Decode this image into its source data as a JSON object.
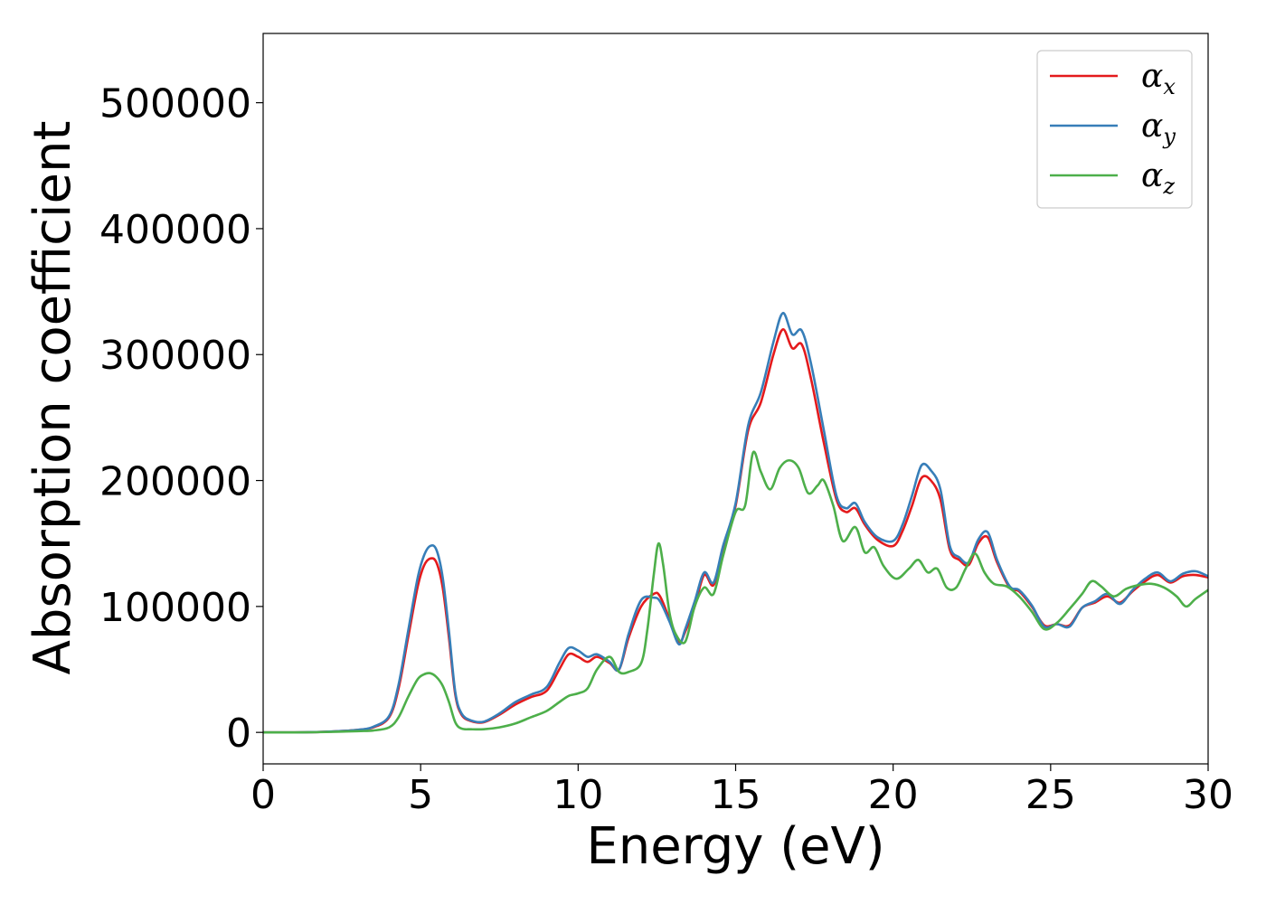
{
  "chart_data": {
    "type": "line",
    "xlabel": "Energy (eV)",
    "ylabel": "Absorption coefficient",
    "xlim": [
      0,
      30
    ],
    "ylim": [
      -25000,
      555000
    ],
    "xticks": [
      0,
      5,
      10,
      15,
      20,
      25,
      30
    ],
    "yticks": [
      0,
      100000,
      200000,
      300000,
      400000,
      500000
    ],
    "grid": false,
    "legend_position": "top-right",
    "series": [
      {
        "name": "α_x",
        "name_base": "α",
        "name_sub": "x",
        "color": "#e41a1c",
        "x": [
          0,
          1,
          2,
          3,
          3.5,
          4,
          4.3,
          4.6,
          4.9,
          5.1,
          5.3,
          5.5,
          5.7,
          5.9,
          6.1,
          6.3,
          6.6,
          7.0,
          7.5,
          8.0,
          8.5,
          9.0,
          9.4,
          9.7,
          10.0,
          10.3,
          10.6,
          11.0,
          11.3,
          11.6,
          12.0,
          12.4,
          12.6,
          12.9,
          13.2,
          13.4,
          13.7,
          14.0,
          14.3,
          14.6,
          15.0,
          15.4,
          15.8,
          16.2,
          16.5,
          16.8,
          17.1,
          17.4,
          17.8,
          18.2,
          18.5,
          18.8,
          19.1,
          19.5,
          20.0,
          20.3,
          20.6,
          20.9,
          21.2,
          21.5,
          21.8,
          22.1,
          22.4,
          22.7,
          23.0,
          23.3,
          23.7,
          24.0,
          24.4,
          24.8,
          25.2,
          25.6,
          26.0,
          26.4,
          26.8,
          27.2,
          27.6,
          28.0,
          28.4,
          28.8,
          29.2,
          29.6,
          30.0
        ],
        "y": [
          0,
          0,
          500,
          2000,
          4000,
          12000,
          35000,
          75000,
          115000,
          132000,
          138000,
          135000,
          115000,
          75000,
          30000,
          14000,
          9000,
          8000,
          14000,
          22000,
          28000,
          33000,
          50000,
          62000,
          60000,
          56000,
          60000,
          55000,
          50000,
          75000,
          100000,
          110000,
          108000,
          90000,
          72000,
          80000,
          100000,
          125000,
          117000,
          145000,
          180000,
          240000,
          262000,
          300000,
          320000,
          305000,
          308000,
          280000,
          230000,
          185000,
          175000,
          178000,
          165000,
          153000,
          148000,
          160000,
          180000,
          202000,
          200000,
          185000,
          145000,
          137000,
          133000,
          150000,
          155000,
          135000,
          115000,
          112000,
          100000,
          85000,
          86000,
          85000,
          99000,
          103000,
          108000,
          103000,
          112000,
          120000,
          125000,
          119000,
          124000,
          125000,
          123000
        ]
      },
      {
        "name": "α_y",
        "name_base": "α",
        "name_sub": "y",
        "color": "#377eb8",
        "x": [
          0,
          1,
          2,
          3,
          3.5,
          4,
          4.3,
          4.6,
          4.9,
          5.1,
          5.3,
          5.5,
          5.7,
          5.9,
          6.1,
          6.3,
          6.6,
          7.0,
          7.5,
          8.0,
          8.5,
          9.0,
          9.4,
          9.7,
          10.0,
          10.3,
          10.6,
          11.0,
          11.3,
          11.6,
          12.0,
          12.4,
          12.6,
          12.9,
          13.2,
          13.4,
          13.7,
          14.0,
          14.3,
          14.6,
          15.0,
          15.4,
          15.8,
          16.2,
          16.5,
          16.8,
          17.1,
          17.4,
          17.8,
          18.2,
          18.5,
          18.8,
          19.1,
          19.5,
          20.0,
          20.3,
          20.6,
          20.9,
          21.2,
          21.5,
          21.8,
          22.1,
          22.4,
          22.7,
          23.0,
          23.3,
          23.7,
          24.0,
          24.4,
          24.8,
          25.2,
          25.6,
          26.0,
          26.4,
          26.8,
          27.2,
          27.6,
          28.0,
          28.4,
          28.8,
          29.2,
          29.6,
          30.0
        ],
        "y": [
          0,
          0,
          500,
          2000,
          4500,
          13000,
          38000,
          80000,
          122000,
          140000,
          148000,
          145000,
          123000,
          80000,
          32000,
          15000,
          9500,
          8500,
          15000,
          24000,
          30000,
          36000,
          55000,
          67000,
          65000,
          60000,
          62000,
          56000,
          50000,
          78000,
          105000,
          107000,
          104000,
          88000,
          70000,
          82000,
          104000,
          127000,
          119000,
          148000,
          182000,
          244000,
          270000,
          310000,
          333000,
          316000,
          319000,
          292000,
          240000,
          188000,
          178000,
          182000,
          167000,
          155000,
          152000,
          165000,
          188000,
          212000,
          208000,
          193000,
          148000,
          139000,
          135000,
          153000,
          159000,
          137000,
          116000,
          113000,
          101000,
          84000,
          86000,
          84000,
          99000,
          104000,
          110000,
          102000,
          113000,
          122000,
          127000,
          120000,
          126000,
          128000,
          124000
        ]
      },
      {
        "name": "α_z",
        "name_base": "α",
        "name_sub": "z",
        "color": "#4daf4a",
        "x": [
          0,
          1,
          2,
          3,
          3.5,
          4,
          4.3,
          4.6,
          4.9,
          5.1,
          5.3,
          5.5,
          5.7,
          5.9,
          6.1,
          6.3,
          6.6,
          7.0,
          7.5,
          8.0,
          8.5,
          9.0,
          9.4,
          9.7,
          10.0,
          10.3,
          10.6,
          11.0,
          11.3,
          11.6,
          12.0,
          12.2,
          12.4,
          12.55,
          12.7,
          12.9,
          13.1,
          13.4,
          13.7,
          14.0,
          14.3,
          14.6,
          15.0,
          15.3,
          15.55,
          15.8,
          16.1,
          16.4,
          16.7,
          17.0,
          17.3,
          17.6,
          17.8,
          18.1,
          18.4,
          18.8,
          19.1,
          19.4,
          19.7,
          20.1,
          20.5,
          20.8,
          21.1,
          21.4,
          21.7,
          22.0,
          22.3,
          22.6,
          22.9,
          23.2,
          23.6,
          24.0,
          24.4,
          24.8,
          25.2,
          25.6,
          26.0,
          26.3,
          26.6,
          27.0,
          27.4,
          27.8,
          28.2,
          28.6,
          29.0,
          29.3,
          29.6,
          30.0
        ],
        "y": [
          0,
          0,
          300,
          1000,
          1500,
          4000,
          12000,
          28000,
          42000,
          46000,
          47000,
          44000,
          37000,
          24000,
          8000,
          3000,
          2500,
          2500,
          4000,
          7000,
          12000,
          17000,
          24000,
          29000,
          31000,
          35000,
          50000,
          60000,
          48000,
          48000,
          55000,
          82000,
          125000,
          150000,
          133000,
          95000,
          78000,
          72000,
          100000,
          115000,
          110000,
          140000,
          175000,
          180000,
          222000,
          207000,
          193000,
          210000,
          216000,
          210000,
          190000,
          196000,
          200000,
          180000,
          152000,
          163000,
          143000,
          147000,
          132000,
          122000,
          130000,
          137000,
          127000,
          130000,
          115000,
          115000,
          130000,
          142000,
          127000,
          118000,
          116000,
          108000,
          96000,
          82000,
          87000,
          98000,
          110000,
          120000,
          116000,
          108000,
          114000,
          117000,
          118000,
          115000,
          108000,
          100000,
          106000,
          113000
        ]
      }
    ]
  }
}
